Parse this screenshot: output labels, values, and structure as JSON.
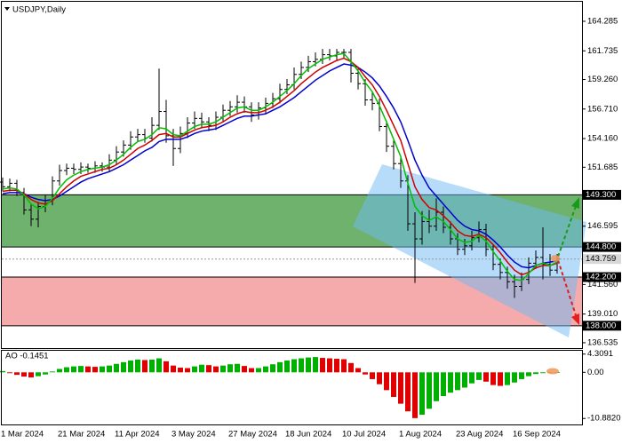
{
  "chart_data": [
    {
      "type": "ohlc",
      "title": "USDJPY,Daily",
      "categories": [
        "1 Mar 2024",
        null,
        null,
        null,
        null,
        null,
        null,
        null,
        "21 Mar 2024",
        null,
        null,
        null,
        null,
        null,
        null,
        null,
        "11 Apr 2024",
        null,
        null,
        null,
        null,
        null,
        null,
        null,
        "3 May 2024",
        null,
        null,
        null,
        null,
        null,
        null,
        null,
        "27 May 2024",
        null,
        null,
        null,
        null,
        null,
        null,
        null,
        "18 Jun 2024",
        null,
        null,
        null,
        null,
        null,
        null,
        null,
        "10 Jul 2024",
        null,
        null,
        null,
        null,
        null,
        null,
        null,
        "1 Aug 2024",
        null,
        null,
        null,
        null,
        null,
        null,
        null,
        "23 Aug 2024",
        null,
        null,
        null,
        null,
        null,
        null,
        null,
        "16 Sep 2024",
        null,
        null,
        null,
        null,
        null,
        null
      ],
      "open": [
        150.4,
        150.0,
        150.3,
        149.5,
        148.0,
        147.2,
        148.3,
        148.8,
        150.5,
        151.4,
        151.6,
        151.5,
        151.7,
        151.6,
        151.8,
        151.7,
        152.3,
        153.0,
        153.6,
        154.3,
        154.5,
        154.2,
        155.3,
        156.5,
        154.4,
        153.3,
        154.6,
        155.5,
        155.9,
        155.6,
        155.3,
        156.0,
        156.6,
        156.9,
        157.3,
        156.9,
        156.2,
        156.8,
        157.2,
        157.6,
        158.4,
        158.8,
        159.7,
        160.3,
        160.8,
        161.0,
        161.4,
        161.3,
        161.6,
        161.6,
        159.8,
        158.9,
        157.5,
        157.2,
        155.2,
        153.5,
        152.0,
        150.5,
        146.8,
        145.5,
        147.0,
        146.6,
        147.8,
        146.5,
        145.5,
        144.6,
        144.9,
        145.6,
        146.3,
        144.6,
        143.3,
        142.6,
        141.8,
        141.4,
        142.0,
        143.4,
        143.9,
        143.3,
        142.8
      ],
      "high": [
        150.8,
        150.7,
        150.6,
        149.9,
        148.5,
        148.7,
        149.3,
        150.9,
        151.9,
        152.0,
        152.0,
        152.1,
        152.0,
        152.2,
        152.1,
        152.8,
        153.5,
        154.0,
        154.8,
        155.0,
        155.0,
        156.0,
        160.2,
        157.5,
        155.0,
        155.2,
        156.0,
        156.5,
        156.4,
        156.0,
        156.5,
        157.1,
        157.4,
        157.9,
        157.8,
        157.3,
        157.3,
        157.7,
        158.1,
        158.9,
        159.3,
        160.3,
        160.8,
        161.3,
        161.6,
        161.9,
        161.9,
        161.9,
        161.9,
        161.9,
        160.2,
        159.3,
        158.2,
        157.6,
        155.7,
        154.0,
        152.5,
        151.0,
        147.8,
        147.9,
        148.0,
        149.0,
        148.3,
        147.0,
        146.0,
        145.5,
        146.2,
        147.0,
        146.8,
        145.0,
        143.8,
        143.1,
        142.4,
        142.6,
        143.9,
        144.5,
        146.5,
        144.2,
        144.2
      ],
      "low": [
        149.6,
        149.6,
        149.2,
        147.6,
        146.6,
        146.5,
        147.8,
        148.4,
        150.1,
        151.0,
        151.1,
        151.1,
        151.2,
        151.2,
        151.3,
        151.3,
        151.9,
        152.6,
        153.2,
        153.9,
        153.8,
        153.9,
        154.9,
        153.8,
        151.8,
        152.9,
        154.2,
        155.0,
        155.1,
        154.8,
        154.9,
        155.6,
        156.1,
        156.4,
        156.4,
        155.6,
        155.8,
        156.3,
        156.8,
        157.2,
        158.0,
        158.4,
        159.3,
        159.9,
        160.4,
        160.6,
        160.9,
        160.9,
        161.1,
        159.0,
        158.4,
        157.0,
        156.6,
        154.8,
        153.0,
        151.5,
        149.9,
        146.2,
        141.7,
        145.0,
        146.0,
        146.2,
        146.0,
        145.0,
        144.1,
        144.1,
        144.5,
        145.2,
        144.0,
        142.8,
        142.0,
        141.2,
        140.4,
        141.0,
        141.6,
        142.9,
        142.0,
        142.3,
        142.5
      ],
      "close": [
        150.0,
        150.3,
        149.5,
        148.0,
        147.2,
        148.3,
        148.8,
        150.5,
        151.4,
        151.6,
        151.5,
        151.7,
        151.6,
        151.8,
        151.7,
        152.3,
        153.0,
        153.6,
        154.3,
        154.5,
        154.2,
        155.3,
        156.5,
        154.4,
        153.3,
        154.6,
        155.5,
        155.9,
        155.6,
        155.3,
        156.0,
        156.6,
        156.9,
        157.3,
        156.9,
        156.2,
        156.8,
        157.2,
        157.6,
        158.4,
        158.8,
        159.7,
        160.3,
        160.8,
        161.0,
        161.4,
        161.3,
        161.6,
        161.6,
        159.8,
        158.9,
        157.5,
        157.2,
        155.2,
        153.5,
        152.0,
        150.5,
        146.8,
        145.5,
        147.0,
        146.6,
        147.8,
        146.5,
        145.5,
        144.6,
        144.9,
        145.6,
        146.3,
        144.6,
        143.3,
        142.6,
        141.8,
        141.4,
        142.0,
        143.4,
        143.9,
        143.3,
        142.8,
        143.759
      ],
      "bar_color": "#000000",
      "series": [
        {
          "color": "#0000cc",
          "values": [
            149.4,
            149.5,
            149.5,
            149.4,
            149.1,
            148.9,
            148.8,
            148.9,
            149.2,
            149.6,
            150.0,
            150.4,
            150.7,
            150.9,
            151.1,
            151.3,
            151.6,
            151.9,
            152.3,
            152.7,
            153.1,
            153.4,
            153.9,
            154.1,
            154.1,
            154.1,
            154.3,
            154.6,
            154.8,
            154.9,
            155.0,
            155.3,
            155.6,
            155.9,
            156.1,
            156.1,
            156.2,
            156.3,
            156.6,
            156.9,
            157.3,
            157.7,
            158.2,
            158.7,
            159.2,
            159.6,
            160.0,
            160.3,
            160.6,
            160.5,
            160.3,
            159.9,
            159.4,
            158.7,
            157.8,
            156.8,
            155.6,
            154.0,
            152.3,
            151.0,
            149.9,
            149.2,
            148.5,
            147.8,
            147.1,
            146.6,
            146.3,
            146.2,
            145.9,
            145.4,
            144.8,
            144.1,
            143.5,
            143.1,
            143.0,
            143.2,
            143.4,
            143.5,
            143.6
          ]
        },
        {
          "color": "#d00000",
          "values": [
            149.6,
            149.7,
            149.7,
            149.4,
            148.9,
            148.6,
            148.5,
            148.8,
            149.4,
            150.0,
            150.5,
            150.9,
            151.1,
            151.3,
            151.5,
            151.6,
            151.9,
            152.3,
            152.8,
            153.3,
            153.6,
            154.0,
            154.5,
            154.6,
            154.3,
            154.3,
            154.6,
            154.9,
            155.1,
            155.2,
            155.3,
            155.6,
            156.0,
            156.3,
            156.5,
            156.4,
            156.4,
            156.6,
            156.9,
            157.3,
            157.8,
            158.3,
            158.9,
            159.4,
            159.9,
            160.3,
            160.6,
            160.9,
            161.1,
            160.8,
            160.3,
            159.5,
            158.8,
            157.8,
            156.6,
            155.3,
            154.0,
            152.0,
            150.0,
            148.9,
            148.2,
            148.0,
            147.5,
            146.9,
            146.2,
            145.8,
            145.7,
            145.9,
            145.6,
            145.0,
            144.3,
            143.5,
            142.8,
            142.4,
            142.6,
            143.0,
            143.2,
            143.2,
            143.4
          ]
        },
        {
          "color": "#00c000",
          "values": [
            149.8,
            149.9,
            149.8,
            149.3,
            148.5,
            148.1,
            148.3,
            149.0,
            149.9,
            150.6,
            151.0,
            151.3,
            151.5,
            151.6,
            151.7,
            151.9,
            152.3,
            152.8,
            153.4,
            153.9,
            154.1,
            154.5,
            155.1,
            155.0,
            154.5,
            154.4,
            154.8,
            155.2,
            155.4,
            155.4,
            155.6,
            156.0,
            156.4,
            156.8,
            156.9,
            156.6,
            156.6,
            156.9,
            157.3,
            157.8,
            158.3,
            158.9,
            159.6,
            160.2,
            160.6,
            161.0,
            161.2,
            161.4,
            161.5,
            160.8,
            160.0,
            159.0,
            158.2,
            157.0,
            155.6,
            154.1,
            152.6,
            150.3,
            148.3,
            147.5,
            147.1,
            147.4,
            147.0,
            146.3,
            145.5,
            145.2,
            145.3,
            145.8,
            145.3,
            144.4,
            143.6,
            142.7,
            142.0,
            141.9,
            142.5,
            143.2,
            143.4,
            143.2,
            143.5
          ]
        }
      ],
      "zones": [
        {
          "high": {
            "value": 149.3,
            "label": "149.300"
          },
          "low": {
            "value": 144.8,
            "label": "144.800"
          },
          "color": "rgba(0,120,0,0.57)"
        },
        {
          "high": {
            "value": 142.2,
            "label": "142.200"
          },
          "low": {
            "value": 138.0,
            "label": "138.000"
          },
          "color": "rgba(224,0,0,0.33)"
        }
      ],
      "last_price": 143.759,
      "ylim": [
        136.07,
        165.97
      ],
      "yticks": [
        164.285,
        161.735,
        {
          "value": 159.26,
          "label": "159.260"
        },
        {
          "value": 156.71,
          "label": "156.710"
        },
        {
          "value": 154.16,
          "label": "154.160"
        },
        151.685,
        146.595,
        {
          "value": 141.56,
          "label": "141.560"
        },
        {
          "value": 139.01,
          "label": "139.010"
        },
        136.535
      ],
      "grid": false
    },
    {
      "type": "bar",
      "title": "AO -0.1451",
      "values": [
        0.3,
        -0.2,
        -0.6,
        -1.0,
        -1.2,
        -0.9,
        -0.5,
        0.2,
        0.8,
        1.2,
        1.4,
        1.5,
        1.4,
        1.3,
        1.4,
        1.6,
        2.0,
        2.4,
        2.8,
        3.0,
        2.9,
        3.0,
        3.3,
        2.6,
        1.6,
        1.1,
        1.0,
        1.4,
        1.8,
        1.7,
        1.4,
        1.6,
        1.9,
        2.0,
        1.5,
        1.0,
        1.0,
        1.4,
        1.9,
        2.4,
        2.8,
        3.1,
        3.3,
        3.5,
        3.6,
        3.4,
        3.3,
        3.2,
        3.1,
        2.2,
        1.0,
        -0.5,
        -1.6,
        -2.8,
        -4.2,
        -5.8,
        -7.4,
        -9.2,
        -10.8,
        -10.0,
        -8.6,
        -6.8,
        -5.6,
        -4.8,
        -4.2,
        -3.6,
        -2.6,
        -1.8,
        -2.2,
        -3.0,
        -3.2,
        -3.0,
        -2.4,
        -1.6,
        -0.9,
        -0.4,
        -0.2,
        -0.15,
        -0.1451
      ],
      "up_color": "#00b000",
      "down_color": "#e00000",
      "ylim": [
        -12.3,
        5.3
      ],
      "yticks": [
        4.3091,
        {
          "value": 0,
          "label": "0.00"
        },
        {
          "value": -10.882,
          "label": "-10.8820"
        }
      ],
      "grid": false
    }
  ]
}
